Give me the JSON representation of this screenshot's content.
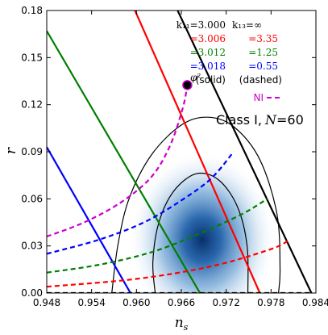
{
  "chart_data": {
    "type": "line",
    "xlabel": "n_s",
    "ylabel": "r",
    "xlim": [
      0.948,
      0.984
    ],
    "ylim": [
      0.0,
      0.18
    ],
    "xticks": [
      "0.948",
      "0.954",
      "0.960",
      "0.966",
      "0.972",
      "0.978",
      "0.984"
    ],
    "yticks": [
      "0.00",
      "0.03",
      "0.06",
      "0.09",
      "0.12",
      "0.15",
      "0.18"
    ],
    "grid": false,
    "legend_position": "top-right",
    "annotation": {
      "class_text": "Class I,",
      "n_text": "N",
      "n_value": "=60",
      "phi_label": "φ²",
      "phi_point": {
        "x": 0.9668,
        "y": 0.1325
      }
    },
    "legend": {
      "k11_header": "k₁₁=3.000",
      "k13_header": "k₁₃=∞",
      "rows": [
        {
          "k11": "=3.006",
          "k13": "=3.35",
          "color": "#ff0000"
        },
        {
          "k11": "=3.012",
          "k13": "=1.25",
          "color": "#008000"
        },
        {
          "k11": "=3.018",
          "k13": "=0.55",
          "color": "#0000ff"
        }
      ],
      "solid_label": "(solid)",
      "dashed_label": "(dashed)",
      "ni_label": "NI",
      "ni_color": "#cc00cc"
    },
    "series": [
      {
        "name": "=3.000",
        "style": "solid",
        "color": "#000000",
        "points": [
          [
            0.9655,
            0.18
          ],
          [
            0.9834,
            0.0
          ]
        ]
      },
      {
        "name": "=3.006",
        "style": "solid",
        "color": "#ff0000",
        "points": [
          [
            0.9598,
            0.18
          ],
          [
            0.9765,
            0.0
          ]
        ]
      },
      {
        "name": "=3.012",
        "style": "solid",
        "color": "#008000",
        "points": [
          [
            0.948,
            0.167
          ],
          [
            0.9685,
            0.0
          ]
        ]
      },
      {
        "name": "=3.018",
        "style": "solid",
        "color": "#0000ff",
        "points": [
          [
            0.948,
            0.093
          ],
          [
            0.9592,
            0.0
          ]
        ]
      },
      {
        "name": "=∞",
        "style": "dashed",
        "color": "#000000",
        "points": [
          [
            0.948,
            0.0
          ],
          [
            0.9835,
            0.0
          ]
        ]
      },
      {
        "name": "=3.35",
        "style": "dashed",
        "color": "#ff0000",
        "points": [
          [
            0.948,
            0.004
          ],
          [
            0.96,
            0.009
          ],
          [
            0.97,
            0.017
          ],
          [
            0.978,
            0.028
          ],
          [
            0.9805,
            0.034
          ]
        ]
      },
      {
        "name": "=1.25",
        "style": "dashed",
        "color": "#008000",
        "points": [
          [
            0.948,
            0.013
          ],
          [
            0.955,
            0.018
          ],
          [
            0.962,
            0.026
          ],
          [
            0.968,
            0.037
          ],
          [
            0.974,
            0.05
          ],
          [
            0.9775,
            0.06
          ]
        ]
      },
      {
        "name": "=0.55",
        "style": "dashed",
        "color": "#0000ff",
        "points": [
          [
            0.948,
            0.025
          ],
          [
            0.955,
            0.034
          ],
          [
            0.961,
            0.045
          ],
          [
            0.966,
            0.059
          ],
          [
            0.97,
            0.073
          ],
          [
            0.973,
            0.09
          ]
        ]
      },
      {
        "name": "NI",
        "style": "dashed",
        "color": "#cc00cc",
        "points": [
          [
            0.948,
            0.036
          ],
          [
            0.953,
            0.045
          ],
          [
            0.958,
            0.058
          ],
          [
            0.962,
            0.074
          ],
          [
            0.9645,
            0.094
          ],
          [
            0.9662,
            0.118
          ],
          [
            0.9668,
            0.1325
          ]
        ]
      }
    ],
    "contours": {
      "center": {
        "x": 0.9688,
        "y": 0.034
      },
      "sigma1": [
        [
          0.9625,
          0.0
        ],
        [
          0.9622,
          0.02
        ],
        [
          0.963,
          0.045
        ],
        [
          0.965,
          0.065
        ],
        [
          0.968,
          0.076
        ],
        [
          0.971,
          0.072
        ],
        [
          0.9735,
          0.055
        ],
        [
          0.9748,
          0.03
        ],
        [
          0.9749,
          0.0
        ]
      ],
      "sigma2": [
        [
          0.9567,
          0.0
        ],
        [
          0.9575,
          0.03
        ],
        [
          0.959,
          0.06
        ],
        [
          0.962,
          0.088
        ],
        [
          0.966,
          0.107
        ],
        [
          0.9695,
          0.112
        ],
        [
          0.973,
          0.106
        ],
        [
          0.9765,
          0.085
        ],
        [
          0.9788,
          0.05
        ],
        [
          0.9792,
          0.015
        ],
        [
          0.979,
          0.0
        ]
      ]
    }
  }
}
